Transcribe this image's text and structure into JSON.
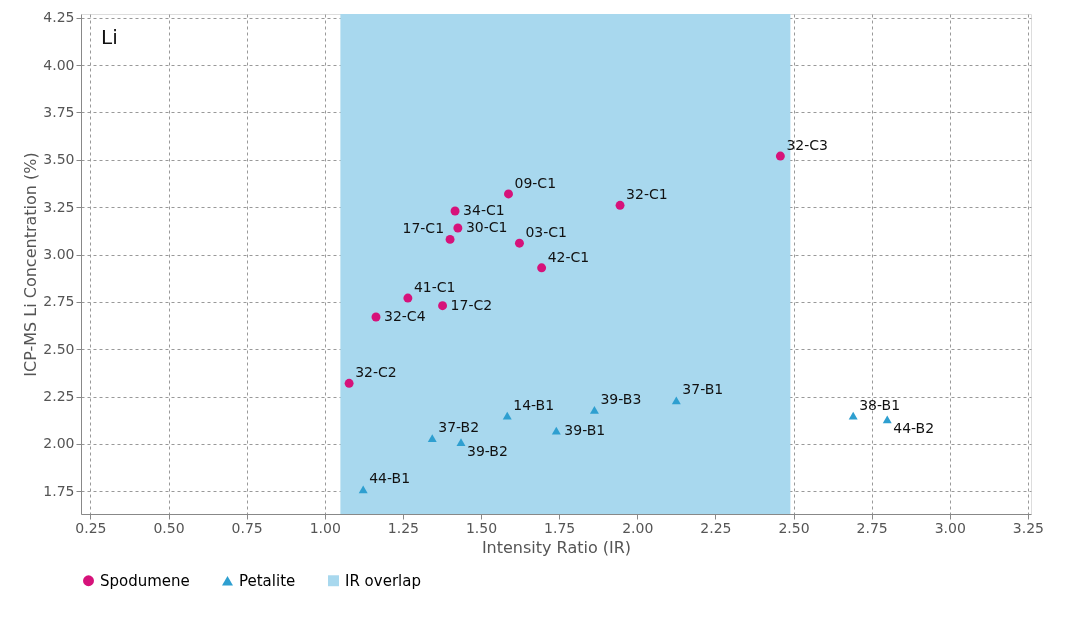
{
  "chart_data": {
    "type": "scatter",
    "xlabel": "Intensity Ratio (IR)",
    "ylabel": "ICP-MS Li Concentration (%)",
    "xlim": [
      0.22,
      3.26
    ],
    "ylim": [
      1.63,
      4.27
    ],
    "xticks": [
      {
        "value": 0.25,
        "label": "0.25"
      },
      {
        "value": 0.5,
        "label": "0.50"
      },
      {
        "value": 0.75,
        "label": "0.75"
      },
      {
        "value": 1.0,
        "label": "1.00"
      },
      {
        "value": 1.25,
        "label": "1.25"
      },
      {
        "value": 1.5,
        "label": "1.50"
      },
      {
        "value": 1.75,
        "label": "1.75"
      },
      {
        "value": 2.0,
        "label": "2.00"
      },
      {
        "value": 2.25,
        "label": "2.25"
      },
      {
        "value": 2.5,
        "label": "2.50"
      },
      {
        "value": 2.75,
        "label": "2.75"
      },
      {
        "value": 3.0,
        "label": "3.00"
      },
      {
        "value": 3.25,
        "label": "3.25"
      }
    ],
    "yticks": [
      {
        "value": 1.75,
        "label": "1.75"
      },
      {
        "value": 2.0,
        "label": "2.00"
      },
      {
        "value": 2.25,
        "label": "2.25"
      },
      {
        "value": 2.5,
        "label": "2.50"
      },
      {
        "value": 2.75,
        "label": "2.75"
      },
      {
        "value": 3.0,
        "label": "3.00"
      },
      {
        "value": 3.25,
        "label": "3.25"
      },
      {
        "value": 3.5,
        "label": "3.50"
      },
      {
        "value": 3.75,
        "label": "3.75"
      },
      {
        "value": 4.0,
        "label": "4.00"
      },
      {
        "value": 4.25,
        "label": "4.25"
      }
    ],
    "grid": true,
    "legend": "bottom",
    "series": [
      {
        "name": "Spodumene",
        "color": "#d6127a",
        "marker": "circle",
        "x": [
          1.588,
          1.417,
          1.426,
          1.401,
          1.623,
          1.694,
          1.945,
          1.266,
          1.377,
          1.164,
          1.078,
          2.458
        ],
        "values": [
          3.32,
          3.23,
          3.14,
          3.08,
          3.06,
          2.93,
          3.26,
          2.77,
          2.73,
          2.67,
          2.32,
          3.52
        ]
      },
      {
        "name": "Petalite",
        "color": "#2e9fd0",
        "marker": "triangle",
        "x": [
          1.123,
          1.344,
          1.436,
          1.584,
          1.741,
          1.863,
          2.125,
          2.691,
          2.8
        ],
        "values": [
          1.76,
          2.03,
          2.01,
          2.15,
          2.07,
          2.18,
          2.23,
          2.15,
          2.13
        ]
      }
    ],
    "bands": [
      {
        "axis": "x",
        "from": 1.05,
        "to": 2.49,
        "label": "IR overlap",
        "color": "#a8d8ee"
      }
    ],
    "annotations": [
      "Li",
      {
        "text": "09-C1",
        "x": 1.588,
        "y": 3.32
      },
      {
        "text": "34-C1",
        "x": 1.417,
        "y": 3.23
      },
      {
        "text": "30-C1",
        "x": 1.426,
        "y": 3.14
      },
      {
        "text": "17-C1",
        "x": 1.401,
        "y": 3.08
      },
      {
        "text": "03-C1",
        "x": 1.623,
        "y": 3.06
      },
      {
        "text": "42-C1",
        "x": 1.694,
        "y": 2.93
      },
      {
        "text": "32-C1",
        "x": 1.945,
        "y": 3.26
      },
      {
        "text": "41-C1",
        "x": 1.266,
        "y": 2.77
      },
      {
        "text": "17-C2",
        "x": 1.377,
        "y": 2.73
      },
      {
        "text": "32-C4",
        "x": 1.164,
        "y": 2.67
      },
      {
        "text": "32-C2",
        "x": 1.078,
        "y": 2.32
      },
      {
        "text": "32-C3",
        "x": 2.458,
        "y": 3.52
      },
      {
        "text": "44-B1",
        "x": 1.123,
        "y": 1.76
      },
      {
        "text": "37-B2",
        "x": 1.344,
        "y": 2.03
      },
      {
        "text": "39-B2",
        "x": 1.436,
        "y": 2.01
      },
      {
        "text": "14-B1",
        "x": 1.584,
        "y": 2.15
      },
      {
        "text": "39-B1",
        "x": 1.741,
        "y": 2.07
      },
      {
        "text": "39-B3",
        "x": 1.863,
        "y": 2.18
      },
      {
        "text": "37-B1",
        "x": 2.125,
        "y": 2.23
      },
      {
        "text": "38-B1",
        "x": 2.691,
        "y": 2.15
      },
      {
        "text": "44-B2",
        "x": 2.8,
        "y": 2.13
      }
    ]
  }
}
